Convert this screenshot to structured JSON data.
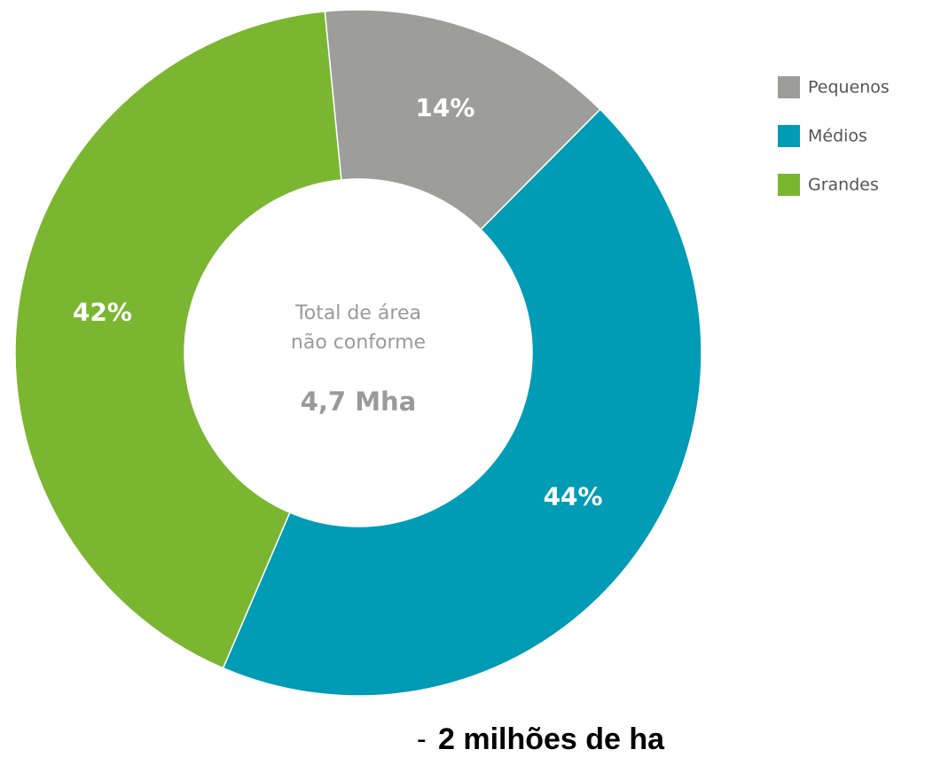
{
  "chart_data": {
    "type": "pie",
    "categories": [
      "Pequenos",
      "Médios",
      "Grandes"
    ],
    "values": [
      14,
      44,
      42
    ],
    "value_labels": [
      "14%",
      "44%",
      "42%"
    ],
    "colors": [
      "#9d9d9c",
      "#009bb5",
      "#7ab630"
    ],
    "center_text": [
      "Total de área",
      "não conforme"
    ],
    "center_value": "4,7 Mha",
    "legend": "top-right",
    "annotation": {
      "prefix": "-",
      "text": "2 milhões de ha"
    }
  }
}
